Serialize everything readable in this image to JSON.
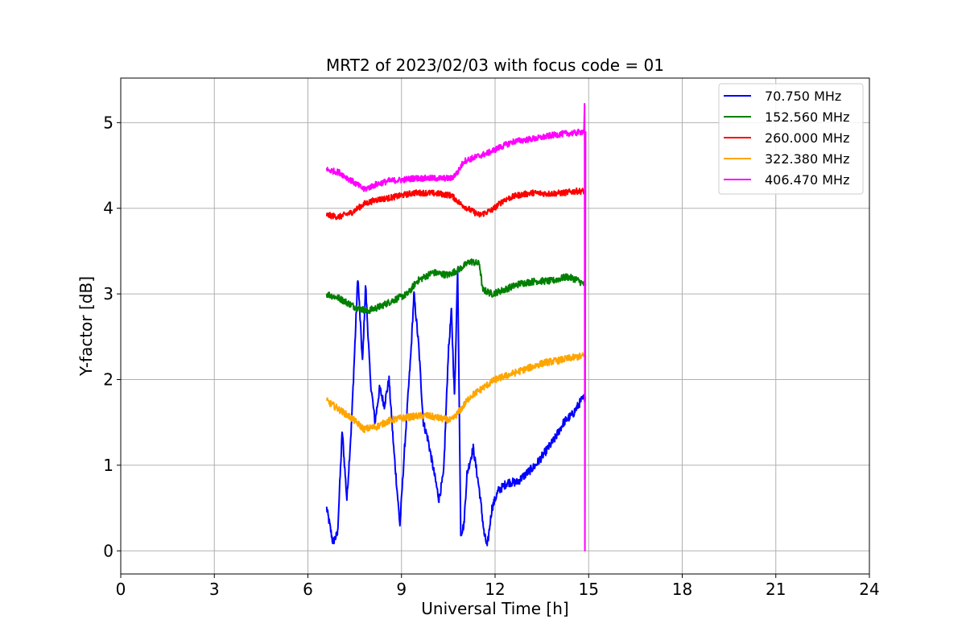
{
  "chart_data": {
    "type": "line",
    "title": "MRT2 of 2023/02/03 with focus code = 01",
    "xlabel": "Universal Time [h]",
    "ylabel": "Y-factor [dB]",
    "xlim": [
      0,
      24
    ],
    "ylim": [
      -0.27,
      5.52
    ],
    "xticks": [
      0,
      3,
      6,
      9,
      12,
      15,
      18,
      21,
      24
    ],
    "yticks": [
      0,
      1,
      2,
      3,
      4,
      5
    ],
    "grid": true,
    "legend_position": "top-right",
    "series": [
      {
        "name": " 70.750 MHz",
        "color": "#0000ff",
        "noise": 0.05,
        "points": [
          [
            6.6,
            0.5
          ],
          [
            6.8,
            0.1
          ],
          [
            6.95,
            0.2
          ],
          [
            7.1,
            1.4
          ],
          [
            7.25,
            0.6
          ],
          [
            7.4,
            1.5
          ],
          [
            7.6,
            3.2
          ],
          [
            7.75,
            2.2
          ],
          [
            7.85,
            3.1
          ],
          [
            8.0,
            2.0
          ],
          [
            8.15,
            1.5
          ],
          [
            8.3,
            1.9
          ],
          [
            8.45,
            1.7
          ],
          [
            8.6,
            2.0
          ],
          [
            8.75,
            1.2
          ],
          [
            8.95,
            0.3
          ],
          [
            9.1,
            1.2
          ],
          [
            9.3,
            2.3
          ],
          [
            9.4,
            3.0
          ],
          [
            9.55,
            2.4
          ],
          [
            9.7,
            1.5
          ],
          [
            9.85,
            1.3
          ],
          [
            10.0,
            1.0
          ],
          [
            10.2,
            0.6
          ],
          [
            10.35,
            0.9
          ],
          [
            10.5,
            2.3
          ],
          [
            10.6,
            2.8
          ],
          [
            10.7,
            1.8
          ],
          [
            10.8,
            3.3
          ],
          [
            10.9,
            0.2
          ],
          [
            11.0,
            0.3
          ],
          [
            11.1,
            0.9
          ],
          [
            11.3,
            1.2
          ],
          [
            11.5,
            0.7
          ],
          [
            11.65,
            0.2
          ],
          [
            11.75,
            0.05
          ],
          [
            11.9,
            0.5
          ],
          [
            12.1,
            0.7
          ],
          [
            12.4,
            0.8
          ],
          [
            12.7,
            0.8
          ],
          [
            13.0,
            0.9
          ],
          [
            13.3,
            1.0
          ],
          [
            13.6,
            1.15
          ],
          [
            13.9,
            1.3
          ],
          [
            14.2,
            1.5
          ],
          [
            14.5,
            1.6
          ],
          [
            14.75,
            1.75
          ],
          [
            14.9,
            1.8
          ]
        ]
      },
      {
        "name": "152.560 MHz",
        "color": "#008000",
        "noise": 0.04,
        "points": [
          [
            6.6,
            3.0
          ],
          [
            7.0,
            2.95
          ],
          [
            7.5,
            2.85
          ],
          [
            7.9,
            2.8
          ],
          [
            8.3,
            2.85
          ],
          [
            8.7,
            2.92
          ],
          [
            9.2,
            3.0
          ],
          [
            9.5,
            3.15
          ],
          [
            10.0,
            3.25
          ],
          [
            10.5,
            3.22
          ],
          [
            10.9,
            3.3
          ],
          [
            11.2,
            3.38
          ],
          [
            11.5,
            3.35
          ],
          [
            11.6,
            3.05
          ],
          [
            11.9,
            3.0
          ],
          [
            12.3,
            3.05
          ],
          [
            12.8,
            3.12
          ],
          [
            13.3,
            3.15
          ],
          [
            13.8,
            3.15
          ],
          [
            14.3,
            3.2
          ],
          [
            14.6,
            3.17
          ],
          [
            14.9,
            3.1
          ]
        ]
      },
      {
        "name": "260.000 MHz",
        "color": "#ff0000",
        "noise": 0.035,
        "points": [
          [
            6.6,
            3.92
          ],
          [
            7.0,
            3.9
          ],
          [
            7.4,
            3.95
          ],
          [
            7.8,
            4.05
          ],
          [
            8.2,
            4.1
          ],
          [
            8.6,
            4.12
          ],
          [
            9.0,
            4.15
          ],
          [
            9.4,
            4.18
          ],
          [
            9.8,
            4.18
          ],
          [
            10.2,
            4.17
          ],
          [
            10.6,
            4.15
          ],
          [
            10.9,
            4.05
          ],
          [
            11.2,
            3.98
          ],
          [
            11.5,
            3.92
          ],
          [
            11.9,
            3.98
          ],
          [
            12.3,
            4.1
          ],
          [
            12.7,
            4.15
          ],
          [
            13.2,
            4.18
          ],
          [
            13.7,
            4.17
          ],
          [
            14.2,
            4.18
          ],
          [
            14.6,
            4.2
          ],
          [
            14.9,
            4.2
          ]
        ]
      },
      {
        "name": "322.380 MHz",
        "color": "#ffa500",
        "noise": 0.04,
        "points": [
          [
            6.6,
            1.75
          ],
          [
            7.0,
            1.65
          ],
          [
            7.4,
            1.55
          ],
          [
            7.8,
            1.42
          ],
          [
            8.2,
            1.45
          ],
          [
            8.6,
            1.52
          ],
          [
            9.0,
            1.55
          ],
          [
            9.4,
            1.57
          ],
          [
            9.8,
            1.58
          ],
          [
            10.2,
            1.55
          ],
          [
            10.6,
            1.52
          ],
          [
            10.9,
            1.65
          ],
          [
            11.2,
            1.8
          ],
          [
            11.6,
            1.9
          ],
          [
            12.0,
            2.0
          ],
          [
            12.4,
            2.05
          ],
          [
            12.8,
            2.1
          ],
          [
            13.2,
            2.15
          ],
          [
            13.6,
            2.2
          ],
          [
            14.0,
            2.22
          ],
          [
            14.4,
            2.25
          ],
          [
            14.9,
            2.28
          ]
        ]
      },
      {
        "name": "406.470 MHz",
        "color": "#ff00ff",
        "noise": 0.035,
        "points": [
          [
            6.6,
            4.45
          ],
          [
            7.0,
            4.42
          ],
          [
            7.4,
            4.32
          ],
          [
            7.8,
            4.22
          ],
          [
            8.2,
            4.28
          ],
          [
            8.6,
            4.32
          ],
          [
            9.0,
            4.33
          ],
          [
            9.4,
            4.35
          ],
          [
            9.8,
            4.35
          ],
          [
            10.2,
            4.35
          ],
          [
            10.6,
            4.35
          ],
          [
            10.8,
            4.42
          ],
          [
            11.0,
            4.55
          ],
          [
            11.4,
            4.6
          ],
          [
            11.8,
            4.65
          ],
          [
            12.2,
            4.72
          ],
          [
            12.6,
            4.78
          ],
          [
            13.0,
            4.8
          ],
          [
            13.4,
            4.82
          ],
          [
            13.8,
            4.85
          ],
          [
            14.2,
            4.87
          ],
          [
            14.6,
            4.88
          ],
          [
            14.85,
            4.9
          ],
          [
            14.87,
            5.22
          ],
          [
            14.88,
            0.0
          ],
          [
            14.9,
            4.9
          ]
        ]
      }
    ]
  }
}
